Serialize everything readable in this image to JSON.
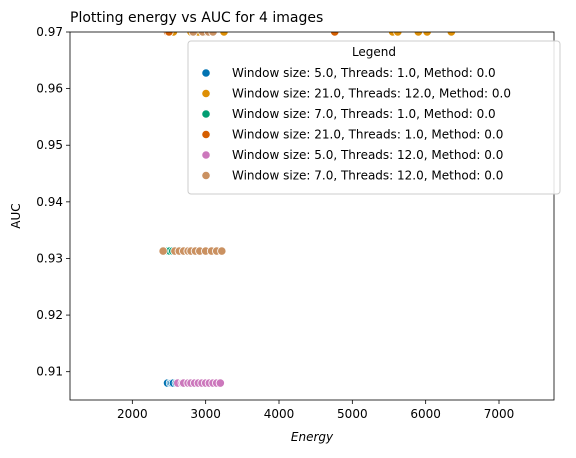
{
  "chart_data": {
    "type": "scatter",
    "title": "Plotting energy vs AUC for 4 images",
    "xlabel": "Energy",
    "ylabel": "AUC",
    "xlim": [
      1150,
      7750
    ],
    "ylim": [
      0.905,
      0.97
    ],
    "xticks": [
      2000,
      3000,
      4000,
      5000,
      6000,
      7000
    ],
    "yticks": [
      0.91,
      0.92,
      0.93,
      0.94,
      0.95,
      0.96,
      0.97
    ],
    "xtick_labels": [
      "2000",
      "3000",
      "4000",
      "5000",
      "6000",
      "7000"
    ],
    "ytick_labels": [
      "0.91",
      "0.92",
      "0.93",
      "0.94",
      "0.95",
      "0.96",
      "0.97"
    ],
    "grid": false,
    "legend": {
      "title": "Legend",
      "placement": "top-right"
    },
    "series": [
      {
        "name": "Window size: 5.0, Threads: 1.0, Method: 0.0",
        "color": "#0173b2",
        "points": [
          [
            2480,
            0.908
          ],
          [
            2520,
            0.908
          ],
          [
            2540,
            0.908
          ],
          [
            2560,
            0.908
          ],
          [
            2600,
            0.908
          ]
        ]
      },
      {
        "name": "Window size: 21.0, Threads: 12.0, Method: 0.0",
        "color": "#de8f05",
        "points": [
          [
            2520,
            0.97
          ],
          [
            2560,
            0.97
          ],
          [
            2800,
            0.97
          ],
          [
            2850,
            0.97
          ],
          [
            2900,
            0.97
          ],
          [
            3000,
            0.97
          ],
          [
            3050,
            0.97
          ],
          [
            3100,
            0.97
          ],
          [
            3250,
            0.97
          ],
          [
            5550,
            0.97
          ],
          [
            5620,
            0.97
          ],
          [
            5900,
            0.97
          ],
          [
            6020,
            0.97
          ],
          [
            6350,
            0.97
          ]
        ]
      },
      {
        "name": "Window size: 7.0, Threads: 1.0, Method: 0.0",
        "color": "#029e73",
        "points": [
          [
            2480,
            0.9313
          ],
          [
            2510,
            0.9313
          ],
          [
            2550,
            0.9313
          ]
        ]
      },
      {
        "name": "Window size: 21.0, Threads: 1.0, Method: 0.0",
        "color": "#d55e00",
        "points": [
          [
            2480,
            0.97
          ],
          [
            2500,
            0.97
          ],
          [
            4760,
            0.97
          ]
        ]
      },
      {
        "name": "Window size: 5.0, Threads: 12.0, Method: 0.0",
        "color": "#cc78bc",
        "points": [
          [
            2620,
            0.908
          ],
          [
            2680,
            0.908
          ],
          [
            2700,
            0.908
          ],
          [
            2760,
            0.908
          ],
          [
            2800,
            0.908
          ],
          [
            2850,
            0.908
          ],
          [
            2900,
            0.908
          ],
          [
            2950,
            0.908
          ],
          [
            3000,
            0.908
          ],
          [
            3050,
            0.908
          ],
          [
            3100,
            0.908
          ],
          [
            3150,
            0.908
          ],
          [
            3200,
            0.908
          ]
        ]
      },
      {
        "name": "Window size: 7.0, Threads: 12.0, Method: 0.0",
        "color": "#ca9161",
        "points": [
          [
            2420,
            0.9313
          ],
          [
            2580,
            0.9313
          ],
          [
            2640,
            0.9313
          ],
          [
            2700,
            0.9313
          ],
          [
            2760,
            0.9313
          ],
          [
            2800,
            0.9313
          ],
          [
            2860,
            0.9313
          ],
          [
            2920,
            0.9313
          ],
          [
            3000,
            0.9313
          ],
          [
            3080,
            0.9313
          ],
          [
            3150,
            0.9313
          ],
          [
            3220,
            0.9313
          ],
          [
            2830,
            0.97
          ],
          [
            2960,
            0.97
          ],
          [
            3040,
            0.97
          ],
          [
            3100,
            0.97
          ]
        ]
      }
    ]
  }
}
